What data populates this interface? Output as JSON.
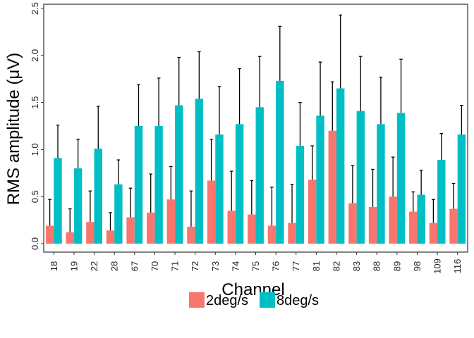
{
  "chart_data": {
    "type": "bar",
    "title": "",
    "xlabel": "Channel",
    "ylabel": "RMS amplitude (μV)",
    "ylim": [
      0,
      2.5
    ],
    "yticks": [
      "0.0",
      "0.5",
      "1.0",
      "1.5",
      "2.0",
      "2.5"
    ],
    "categories": [
      "18",
      "19",
      "22",
      "28",
      "67",
      "70",
      "71",
      "72",
      "73",
      "74",
      "75",
      "76",
      "77",
      "81",
      "82",
      "83",
      "88",
      "89",
      "98",
      "109",
      "116"
    ],
    "series": [
      {
        "name": "2deg/s",
        "color": "#F8766D",
        "values": [
          0.19,
          0.12,
          0.23,
          0.14,
          0.28,
          0.33,
          0.47,
          0.18,
          0.67,
          0.35,
          0.31,
          0.19,
          0.22,
          0.68,
          1.2,
          0.43,
          0.39,
          0.5,
          0.34,
          0.22,
          0.37
        ],
        "error_upper": [
          0.47,
          0.37,
          0.56,
          0.33,
          0.59,
          0.74,
          0.82,
          0.56,
          1.11,
          0.77,
          0.67,
          0.6,
          0.63,
          1.04,
          1.72,
          0.83,
          0.79,
          0.92,
          0.55,
          0.47,
          0.64
        ]
      },
      {
        "name": "8deg/s",
        "color": "#00BFC4",
        "values": [
          0.91,
          0.8,
          1.01,
          0.63,
          1.25,
          1.25,
          1.47,
          1.54,
          1.16,
          1.27,
          1.45,
          1.73,
          1.04,
          1.36,
          1.65,
          1.41,
          1.27,
          1.39,
          0.52,
          0.89,
          1.16
        ],
        "error_upper": [
          1.26,
          1.11,
          1.46,
          0.89,
          1.69,
          1.76,
          1.98,
          2.04,
          1.67,
          1.86,
          1.99,
          2.31,
          1.5,
          1.93,
          2.43,
          1.99,
          1.77,
          1.96,
          0.78,
          1.17,
          1.47
        ]
      }
    ],
    "grid": false,
    "legend_position": "bottom"
  }
}
